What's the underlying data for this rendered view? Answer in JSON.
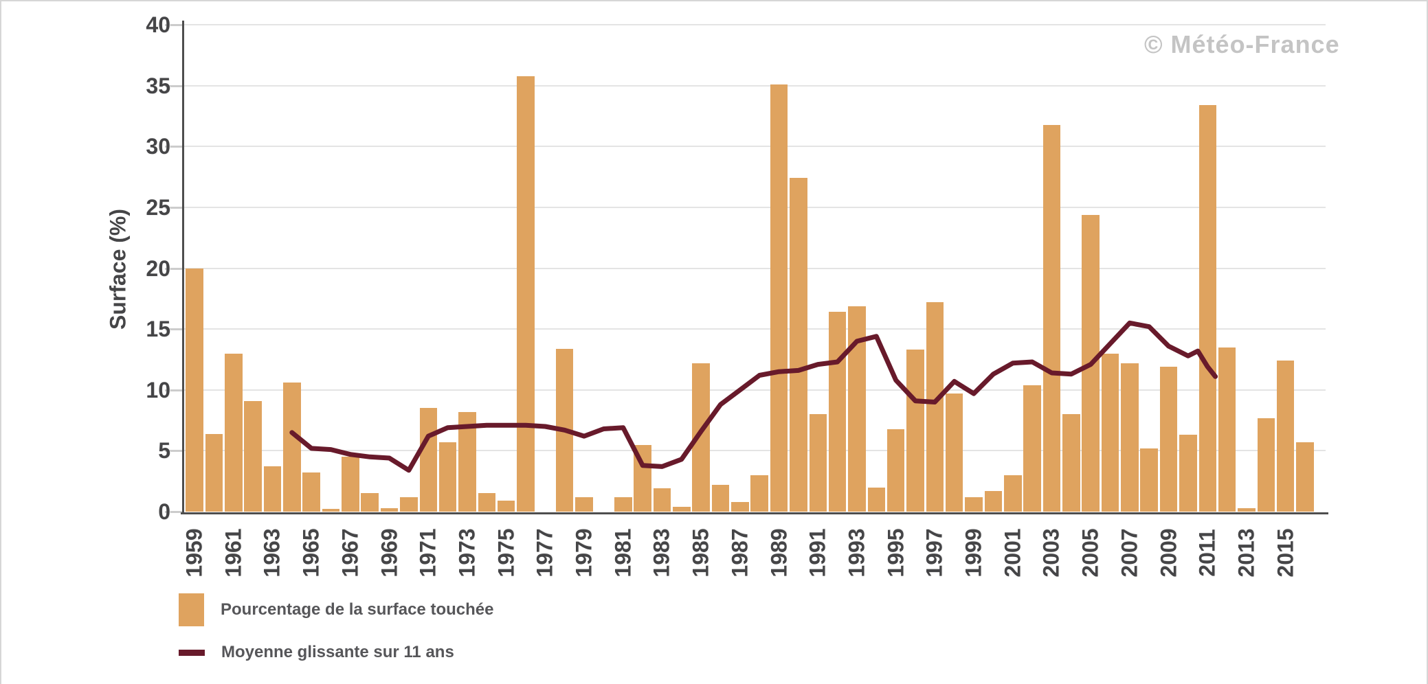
{
  "watermark": {
    "symbol": "©",
    "text": "Météo-France"
  },
  "legend": {
    "items": [
      {
        "label": "Pourcentage de la surface touchée",
        "kind": "bar",
        "color": "#DFA35F"
      },
      {
        "label": "Moyenne glissante sur 11 ans",
        "kind": "line",
        "color": "#681A2B"
      }
    ]
  },
  "chart_data": {
    "type": "bar",
    "title": "",
    "xlabel": "",
    "ylabel": "Surface (%)",
    "ylim": [
      0,
      40
    ],
    "yticks": [
      0,
      5,
      10,
      15,
      20,
      25,
      30,
      35,
      40
    ],
    "grid": "horizontal",
    "legend_position": "bottom-left",
    "watermark": "© Météo-France",
    "categories": [
      1959,
      1960,
      1961,
      1962,
      1963,
      1964,
      1965,
      1966,
      1967,
      1968,
      1969,
      1970,
      1971,
      1972,
      1973,
      1974,
      1975,
      1976,
      1977,
      1978,
      1979,
      1980,
      1981,
      1982,
      1983,
      1984,
      1985,
      1986,
      1987,
      1988,
      1989,
      1990,
      1991,
      1992,
      1993,
      1994,
      1995,
      1996,
      1997,
      1998,
      1999,
      2000,
      2001,
      2002,
      2003,
      2004,
      2005,
      2006,
      2007,
      2008,
      2009,
      2010,
      2011,
      2012,
      2013,
      2014,
      2015,
      2016
    ],
    "x_tick_labels": [
      "1959",
      "1961",
      "1963",
      "1965",
      "1967",
      "1969",
      "1971",
      "1973",
      "1975",
      "1977",
      "1979",
      "1981",
      "1983",
      "1985",
      "1987",
      "1989",
      "1991",
      "1993",
      "1995",
      "1997",
      "1999",
      "2001",
      "2003",
      "2005",
      "2007",
      "2009",
      "2011",
      "2013",
      "2015"
    ],
    "series": [
      {
        "name": "Pourcentage de la surface touchée",
        "type": "bar",
        "color": "#DFA35F",
        "values": [
          20.0,
          6.4,
          13.0,
          9.1,
          3.7,
          10.6,
          3.2,
          0.2,
          4.5,
          1.5,
          0.3,
          1.2,
          8.5,
          5.7,
          8.2,
          1.5,
          0.9,
          35.8,
          0,
          13.4,
          1.2,
          0,
          1.2,
          5.5,
          1.9,
          0.4,
          12.2,
          2.2,
          0.8,
          3.0,
          35.1,
          27.4,
          8.0,
          16.4,
          16.9,
          2.0,
          6.8,
          13.3,
          17.2,
          9.7,
          1.2,
          1.7,
          3.0,
          10.4,
          31.8,
          8.0,
          24.4,
          13.0,
          12.2,
          5.2,
          11.9,
          6.3,
          33.4,
          13.5,
          0.3,
          7.7,
          12.4,
          5.7
        ]
      },
      {
        "name": "Moyenne glissante sur 11 ans",
        "type": "line",
        "color": "#681A2B",
        "points": [
          [
            1964,
            6.5
          ],
          [
            1965,
            5.2
          ],
          [
            1966,
            5.1
          ],
          [
            1967,
            4.7
          ],
          [
            1968,
            4.5
          ],
          [
            1969,
            4.4
          ],
          [
            1970,
            3.4
          ],
          [
            1971,
            6.2
          ],
          [
            1972,
            6.9
          ],
          [
            1973,
            7.0
          ],
          [
            1974,
            7.1
          ],
          [
            1975,
            7.1
          ],
          [
            1976,
            7.1
          ],
          [
            1977,
            7.0
          ],
          [
            1978,
            6.7
          ],
          [
            1979,
            6.2
          ],
          [
            1980,
            6.8
          ],
          [
            1981,
            6.9
          ],
          [
            1982,
            3.8
          ],
          [
            1983,
            3.7
          ],
          [
            1984,
            4.3
          ],
          [
            1985,
            6.6
          ],
          [
            1986,
            8.8
          ],
          [
            1987,
            10.0
          ],
          [
            1988,
            11.2
          ],
          [
            1989,
            11.5
          ],
          [
            1990,
            11.6
          ],
          [
            1991,
            12.1
          ],
          [
            1992,
            12.3
          ],
          [
            1993,
            14.0
          ],
          [
            1994,
            14.4
          ],
          [
            1995,
            10.8
          ],
          [
            1996,
            9.1
          ],
          [
            1997,
            9.0
          ],
          [
            1998,
            10.7
          ],
          [
            1999,
            9.7
          ],
          [
            2000,
            11.3
          ],
          [
            2001,
            12.2
          ],
          [
            2002,
            12.3
          ],
          [
            2003,
            11.4
          ],
          [
            2004,
            11.3
          ],
          [
            2005,
            12.1
          ],
          [
            2006,
            13.8
          ],
          [
            2007,
            15.5
          ],
          [
            2008,
            15.2
          ],
          [
            2009,
            13.6
          ],
          [
            2010,
            12.8
          ],
          [
            2010.5,
            13.2
          ],
          [
            2011,
            11.9
          ],
          [
            2011.4,
            11.1
          ]
        ]
      }
    ]
  }
}
